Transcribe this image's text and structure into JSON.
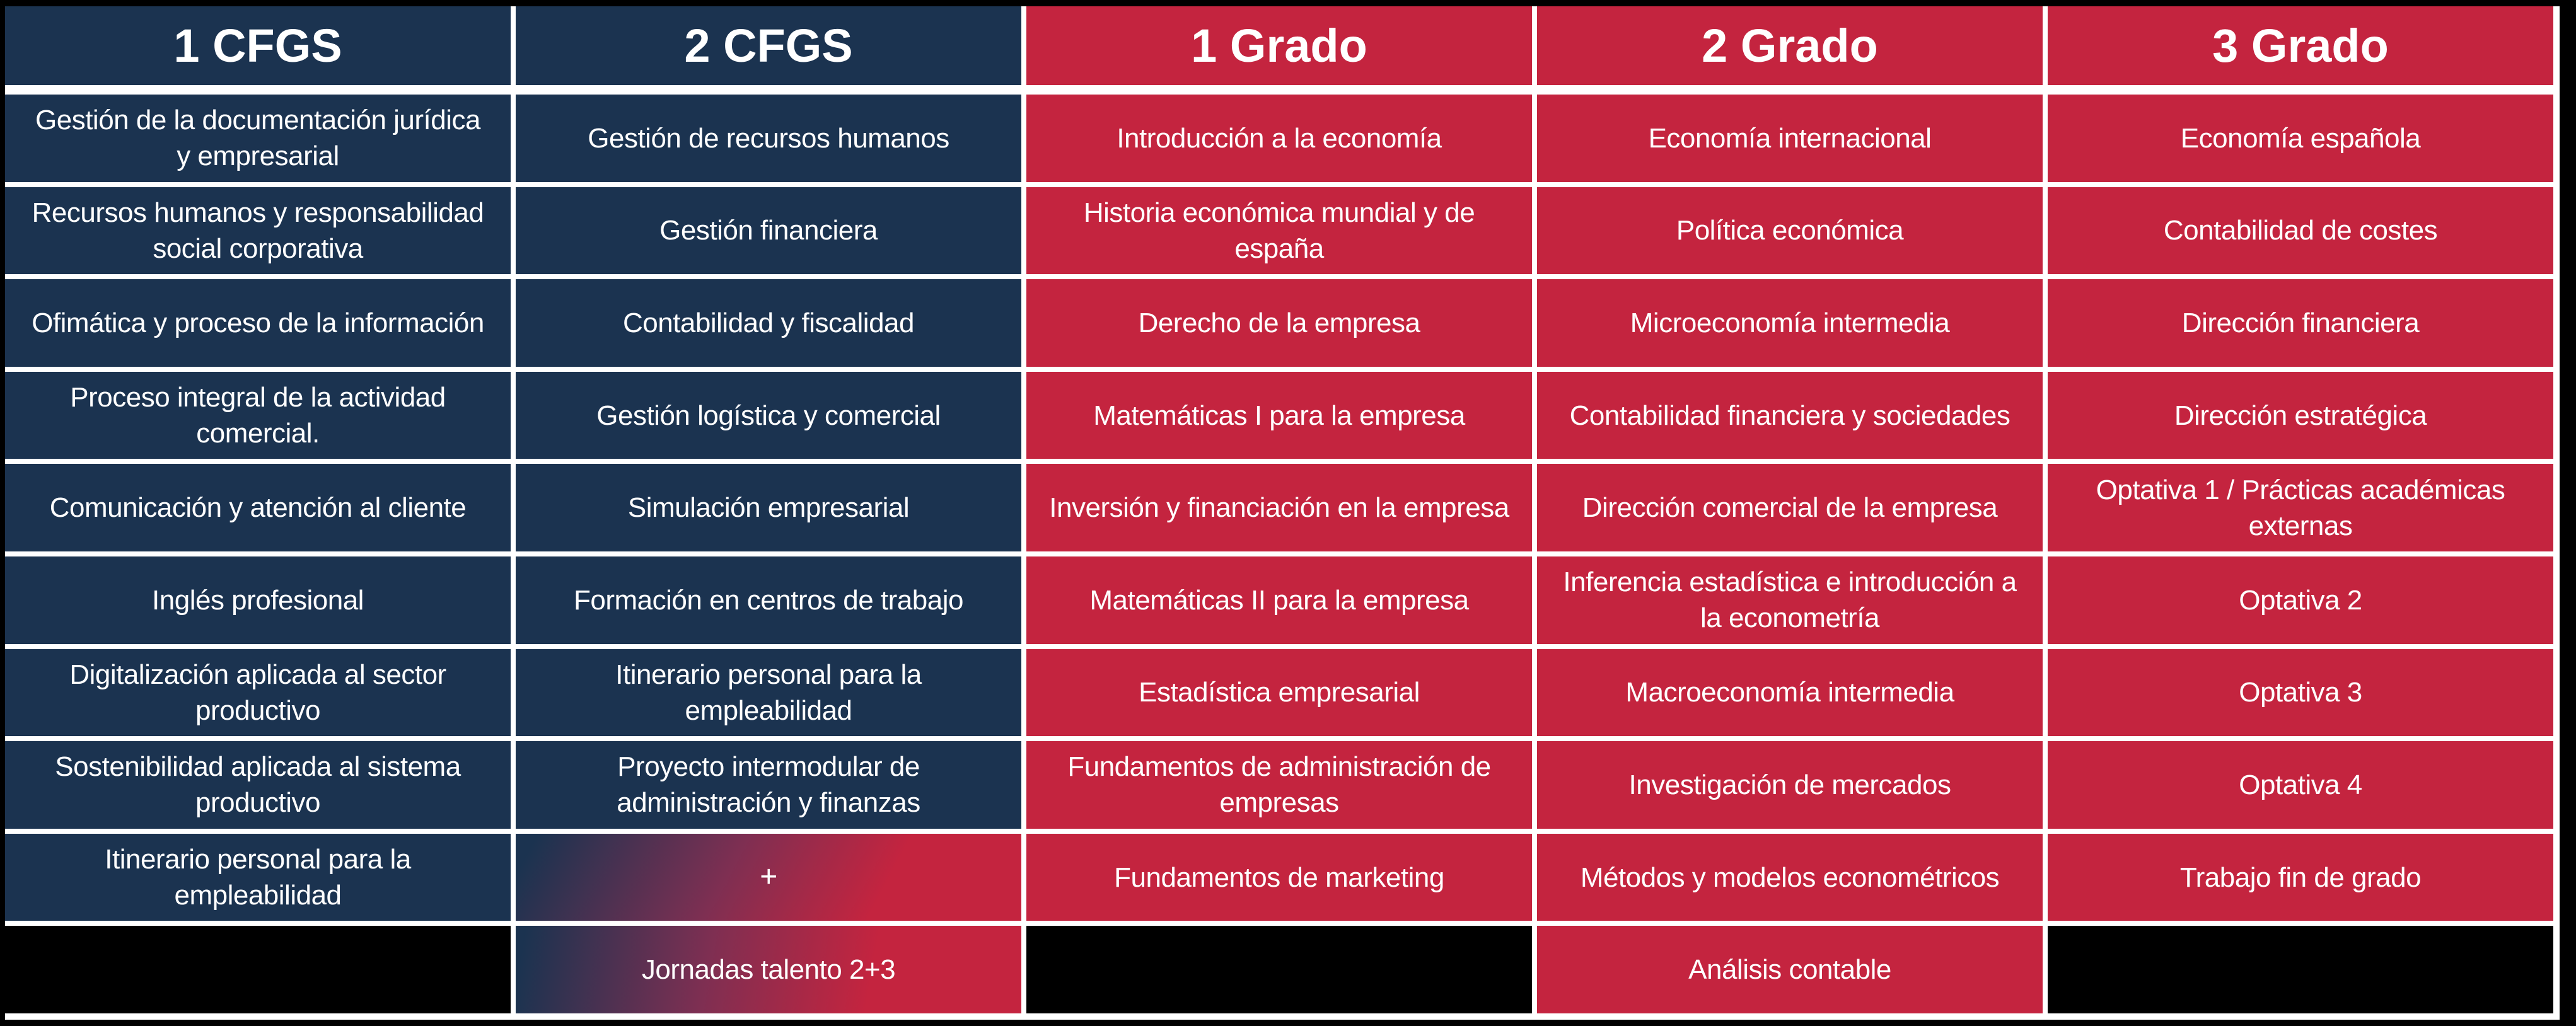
{
  "colors": {
    "navy": "#1b3350",
    "red": "#c4243f",
    "black": "#000000",
    "white": "#ffffff"
  },
  "chart_data": {
    "type": "table",
    "title": "",
    "legend": "none",
    "grid": "white separators on black background",
    "columns": [
      "1 CFGS",
      "2 CFGS",
      "1 Grado",
      "2 Grado",
      "3 Grado"
    ],
    "column_themes": [
      "navy",
      "navy",
      "red",
      "red",
      "red"
    ],
    "rows": [
      [
        {
          "text": "Gestión de la documentación jurídica y empresarial",
          "style": "navy"
        },
        {
          "text": "Gestión de recursos humanos",
          "style": "navy"
        },
        {
          "text": "Introducción a la economía",
          "style": "red"
        },
        {
          "text": "Economía internacional",
          "style": "red"
        },
        {
          "text": "Economía española",
          "style": "red"
        }
      ],
      [
        {
          "text": "Recursos humanos y responsabilidad social corporativa",
          "style": "navy"
        },
        {
          "text": "Gestión financiera",
          "style": "navy"
        },
        {
          "text": "Historia económica mundial y de españa",
          "style": "red"
        },
        {
          "text": "Política económica",
          "style": "red"
        },
        {
          "text": "Contabilidad de costes",
          "style": "red"
        }
      ],
      [
        {
          "text": "Ofimática y proceso de la información",
          "style": "navy"
        },
        {
          "text": "Contabilidad y fiscalidad",
          "style": "navy"
        },
        {
          "text": "Derecho de la empresa",
          "style": "red"
        },
        {
          "text": "Microeconomía intermedia",
          "style": "red"
        },
        {
          "text": "Dirección financiera",
          "style": "red"
        }
      ],
      [
        {
          "text": "Proceso integral de la actividad comercial.",
          "style": "navy"
        },
        {
          "text": "Gestión logística y comercial",
          "style": "navy"
        },
        {
          "text": "Matemáticas I para la empresa",
          "style": "red"
        },
        {
          "text": "Contabilidad financiera y sociedades",
          "style": "red"
        },
        {
          "text": "Dirección estratégica",
          "style": "red"
        }
      ],
      [
        {
          "text": "Comunicación y atención al cliente",
          "style": "navy"
        },
        {
          "text": "Simulación empresarial",
          "style": "navy"
        },
        {
          "text": "Inversión y financiación en la empresa",
          "style": "red"
        },
        {
          "text": "Dirección comercial de la empresa",
          "style": "red"
        },
        {
          "text": "Optativa 1 / Prácticas académicas externas",
          "style": "red"
        }
      ],
      [
        {
          "text": "Inglés profesional",
          "style": "navy"
        },
        {
          "text": "Formación en centros de trabajo",
          "style": "navy"
        },
        {
          "text": "Matemáticas II para la empresa",
          "style": "red"
        },
        {
          "text": "Inferencia estadística e introducción a la econometría",
          "style": "red"
        },
        {
          "text": "Optativa 2",
          "style": "red"
        }
      ],
      [
        {
          "text": "Digitalización aplicada al sector productivo",
          "style": "navy"
        },
        {
          "text": "Itinerario personal para la empleabilidad",
          "style": "navy"
        },
        {
          "text": "Estadística empresarial",
          "style": "red"
        },
        {
          "text": "Macroeconomía intermedia",
          "style": "red"
        },
        {
          "text": "Optativa 3",
          "style": "red"
        }
      ],
      [
        {
          "text": "Sostenibilidad aplicada al sistema productivo",
          "style": "navy"
        },
        {
          "text": "Proyecto intermodular de administración y finanzas",
          "style": "navy"
        },
        {
          "text": "Fundamentos de administración de empresas",
          "style": "red"
        },
        {
          "text": "Investigación de mercados",
          "style": "red"
        },
        {
          "text": "Optativa 4",
          "style": "red"
        }
      ],
      [
        {
          "text": "Itinerario personal para la empleabilidad",
          "style": "navy"
        },
        {
          "text": "+",
          "style": "grad-plus",
          "name": "plus-cell"
        },
        {
          "text": "Fundamentos de marketing",
          "style": "red"
        },
        {
          "text": "Métodos y modelos econométricos",
          "style": "red"
        },
        {
          "text": "Trabajo fin de grado",
          "style": "red"
        }
      ],
      [
        {
          "text": "",
          "style": "black",
          "name": "empty-cell"
        },
        {
          "text": "Jornadas talento 2+3",
          "style": "grad-h",
          "name": "jornadas-talento-cell"
        },
        {
          "text": "",
          "style": "black",
          "name": "empty-cell"
        },
        {
          "text": "Análisis contable",
          "style": "red",
          "name": "analisis-contable-cell"
        },
        {
          "text": "",
          "style": "black",
          "name": "empty-cell"
        }
      ]
    ]
  }
}
